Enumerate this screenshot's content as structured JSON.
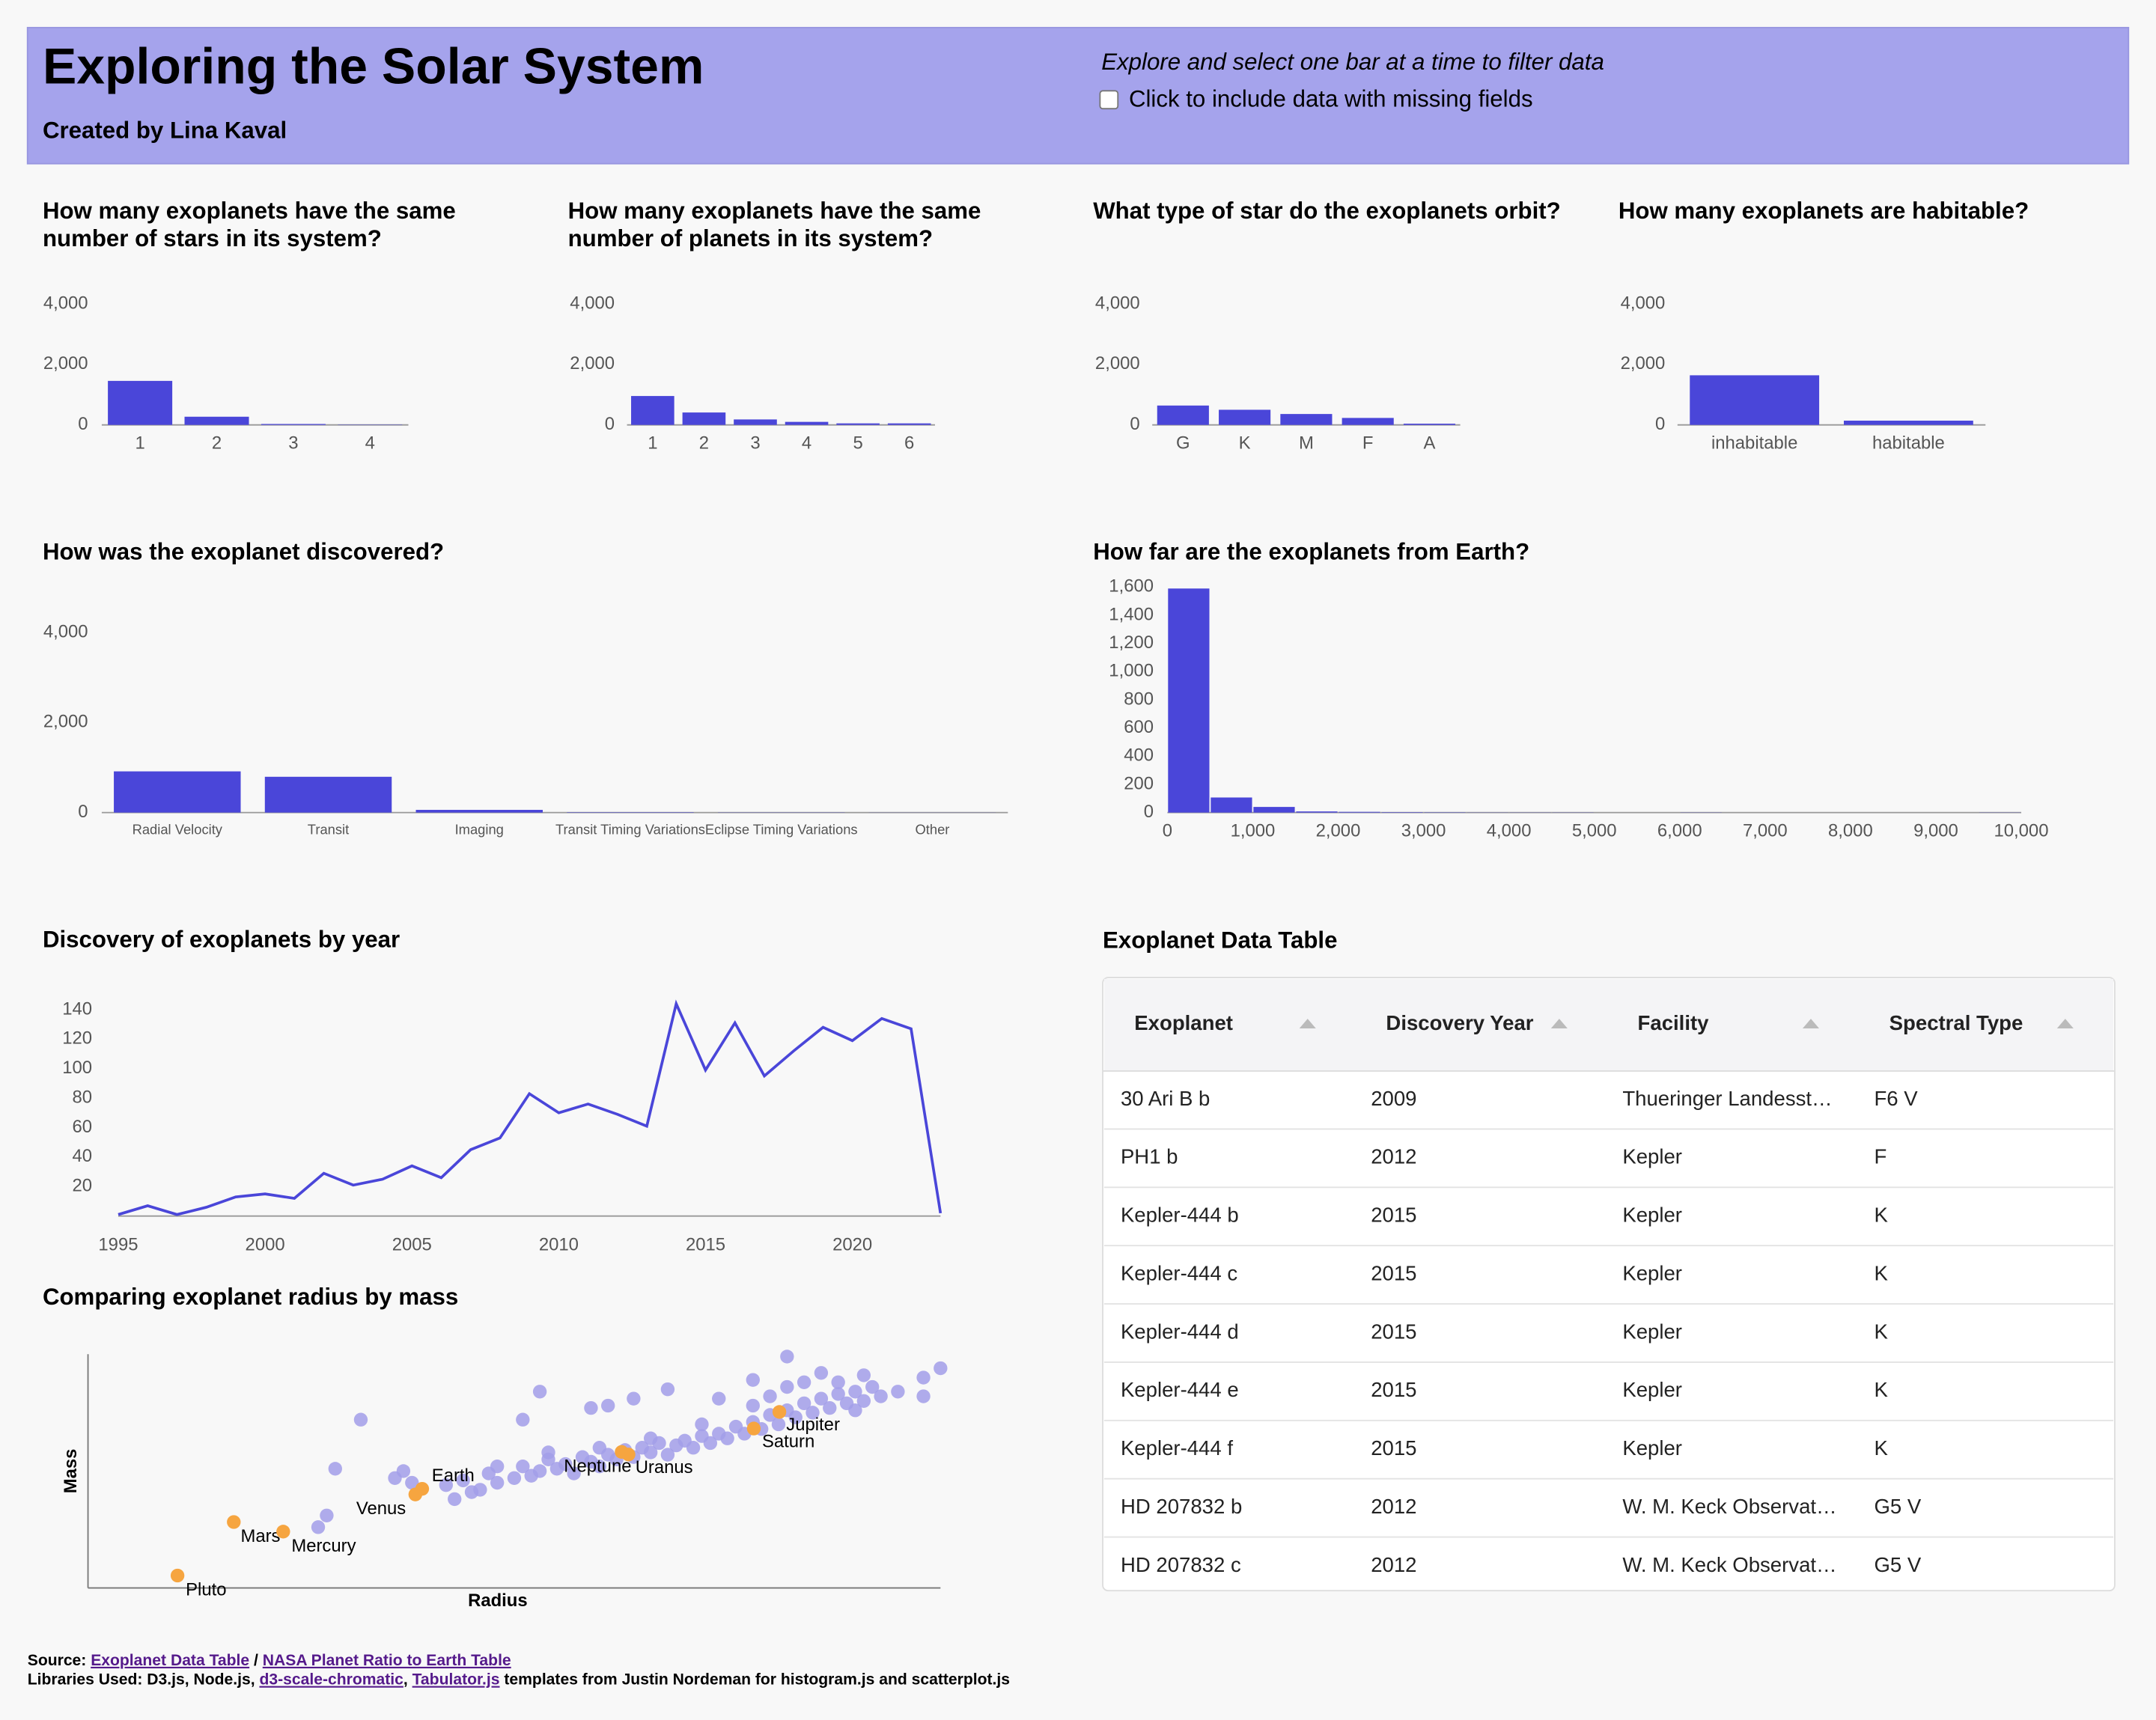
{
  "header": {
    "title": "Exploring the Solar System",
    "subtitle": "Created by Lina Kaval",
    "instruction": "Explore and select one bar at a time to filter data",
    "checkbox_label": "Click to include data with missing fields",
    "checked": false
  },
  "chart_data": [
    {
      "type": "bar",
      "title": "How many exoplanets have the same number of stars in its system?",
      "categories": [
        "1",
        "2",
        "3",
        "4"
      ],
      "values": [
        1455,
        270,
        30,
        10
      ],
      "color": "#4a46d9",
      "ylim": [
        0,
        4000
      ],
      "yticks": [
        0,
        {
          "value": 2000,
          "label": "2,000"
        },
        {
          "value": 4000,
          "label": "4,000"
        }
      ]
    },
    {
      "type": "bar",
      "title": "How many exoplanets have the same number of planets in its system?",
      "categories": [
        "1",
        "2",
        "3",
        "4",
        "5",
        "6"
      ],
      "values": [
        955,
        410,
        180,
        100,
        50,
        50
      ],
      "color": "#4a46d9",
      "ylim": [
        0,
        4000
      ],
      "yticks": [
        0,
        {
          "value": 2000,
          "label": "2,000"
        },
        {
          "value": 4000,
          "label": "4,000"
        }
      ]
    },
    {
      "type": "bar",
      "title": "What type of star do the exoplanets orbit?",
      "categories": [
        "G",
        "K",
        "M",
        "F",
        "A"
      ],
      "values": [
        640,
        500,
        360,
        230,
        40
      ],
      "color": "#4a46d9",
      "ylim": [
        0,
        4000
      ],
      "yticks": [
        0,
        {
          "value": 2000,
          "label": "2,000"
        },
        {
          "value": 4000,
          "label": "4,000"
        }
      ]
    },
    {
      "type": "bar",
      "title": "How many exoplanets are habitable?",
      "categories": [
        "inhabitable",
        "habitable"
      ],
      "values": [
        1640,
        140
      ],
      "color": "#4a46d9",
      "ylim": [
        0,
        4000
      ],
      "yticks": [
        0,
        {
          "value": 2000,
          "label": "2,000"
        },
        {
          "value": 4000,
          "label": "4,000"
        }
      ]
    },
    {
      "type": "bar",
      "title": "How was the exoplanet discovered?",
      "categories": [
        "Radial Velocity",
        "Transit",
        "Imaging",
        "Transit Timing Variations",
        "Eclipse Timing Variations",
        "Other"
      ],
      "values": [
        915,
        795,
        60,
        8,
        4,
        2
      ],
      "color": "#4a46d9",
      "ylim": [
        0,
        4000
      ],
      "yticks": [
        0,
        {
          "value": 2000,
          "label": "2,000"
        },
        {
          "value": 4000,
          "label": "4,000"
        }
      ]
    },
    {
      "type": "histogram",
      "title": "How far are the exoplanets from Earth?",
      "bins": [
        0,
        500,
        1000,
        1500,
        2000,
        2500,
        3000,
        3500,
        4000,
        4500,
        5000,
        5500,
        6000,
        6500,
        7000,
        7500,
        8000,
        8500,
        9000,
        9500,
        10000
      ],
      "values": [
        1590,
        107,
        40,
        8,
        5,
        3,
        2,
        1,
        1,
        1,
        0,
        0,
        1,
        0,
        0,
        0,
        0,
        0,
        0,
        1
      ],
      "color": "#4a46d9",
      "xlim": [
        0,
        10000
      ],
      "xticks": [
        0,
        {
          "value": 1000,
          "label": "1,000"
        },
        {
          "value": 2000,
          "label": "2,000"
        },
        {
          "value": 3000,
          "label": "3,000"
        },
        {
          "value": 4000,
          "label": "4,000"
        },
        {
          "value": 5000,
          "label": "5,000"
        },
        {
          "value": 6000,
          "label": "6,000"
        },
        {
          "value": 7000,
          "label": "7,000"
        },
        {
          "value": 8000,
          "label": "8,000"
        },
        {
          "value": 9000,
          "label": "9,000"
        },
        {
          "value": 10000,
          "label": "10,000"
        }
      ],
      "ylim": [
        0,
        1600
      ],
      "yticks": [
        0,
        200,
        400,
        600,
        800,
        {
          "value": 1000,
          "label": "1,000"
        },
        {
          "value": 1200,
          "label": "1,200"
        },
        {
          "value": 1400,
          "label": "1,400"
        },
        {
          "value": 1600,
          "label": "1,600"
        }
      ]
    },
    {
      "type": "line",
      "title": "Discovery of exoplanets by year",
      "x": [
        1995,
        1996,
        1997,
        1998,
        1999,
        2000,
        2001,
        2002,
        2003,
        2004,
        2005,
        2006,
        2007,
        2008,
        2009,
        2010,
        2011,
        2012,
        2013,
        2014,
        2015,
        2016,
        2017,
        2018,
        2019,
        2020,
        2021,
        2022,
        2023
      ],
      "values": [
        1,
        7,
        1,
        6,
        13,
        15,
        12,
        29,
        21,
        25,
        34,
        26,
        45,
        53,
        83,
        70,
        76,
        69,
        61,
        144,
        99,
        131,
        95,
        112,
        128,
        119,
        134,
        127,
        2
      ],
      "color": "#4a46d9",
      "xlim": [
        1995,
        2023
      ],
      "xticks": [
        1995,
        2000,
        2005,
        2010,
        2015,
        2020
      ],
      "ylim": [
        0,
        145
      ],
      "yticks": [
        20,
        40,
        60,
        80,
        100,
        120,
        140
      ]
    },
    {
      "type": "scatter",
      "title": "Comparing exoplanet radius by mass",
      "x_label": "Radius",
      "y_label": "Mass",
      "xlim": [
        0,
        100
      ],
      "ylim": [
        0,
        100
      ],
      "series": [
        {
          "color": "#a29ee9",
          "x": [
            32,
            29,
            27,
            28,
            37,
            53,
            51,
            59,
            61,
            64,
            68,
            74,
            78,
            82,
            91,
            98,
            100,
            98,
            95,
            42,
            44,
            45,
            47,
            48,
            50,
            51,
            52,
            53,
            54,
            55,
            56,
            57,
            58,
            59,
            60,
            61,
            62,
            63,
            64,
            65,
            66,
            67,
            68,
            69,
            70,
            71,
            72,
            73,
            74,
            75,
            76,
            77,
            78,
            79,
            80,
            81,
            82,
            83,
            84,
            85,
            86,
            87,
            88,
            89,
            90,
            91,
            92,
            93,
            84,
            86,
            82,
            80,
            88,
            90,
            78,
            72,
            66,
            60,
            54,
            48,
            46,
            43,
            38,
            36
          ],
          "values": [
            72,
            51,
            26,
            31,
            50,
            84,
            72,
            77,
            78,
            81,
            85,
            81,
            89,
            99,
            91,
            90,
            94,
            82,
            84,
            44,
            46,
            41,
            49,
            45,
            47,
            52,
            48,
            50,
            55,
            51,
            53,
            49,
            56,
            54,
            52,
            57,
            55,
            59,
            56,
            60,
            58,
            62,
            57,
            61,
            63,
            60,
            65,
            62,
            66,
            64,
            69,
            66,
            71,
            68,
            74,
            70,
            76,
            73,
            79,
            75,
            81,
            77,
            83,
            79,
            84,
            80,
            86,
            82,
            88,
            92,
            86,
            82,
            88,
            76,
            78,
            70,
            64,
            60,
            58,
            52,
            42,
            38,
            45,
            47
          ]
        },
        {
          "color": "#f6a540",
          "x": [
            10.5,
            17.1,
            22.9,
            38.4,
            39.2,
            62.6,
            63.4,
            78.1,
            81.1
          ],
          "values": [
            5.3,
            28.2,
            24.1,
            40,
            42.4,
            58.2,
            57.1,
            68.2,
            75.3
          ],
          "labels": [
            "Pluto",
            "Mars",
            "Mercury",
            "Venus",
            "Earth",
            "Neptune",
            "Uranus",
            "Saturn",
            "Jupiter"
          ]
        }
      ]
    }
  ],
  "table": {
    "title": "Exoplanet Data Table",
    "columns": [
      "Exoplanet",
      "Discovery Year",
      "Facility",
      "Spectral Type"
    ],
    "rows": [
      [
        "30 Ari B b",
        "2009",
        "Thueringer Landesst…",
        "F6 V"
      ],
      [
        "PH1 b",
        "2012",
        "Kepler",
        "F"
      ],
      [
        "Kepler-444 b",
        "2015",
        "Kepler",
        "K"
      ],
      [
        "Kepler-444 c",
        "2015",
        "Kepler",
        "K"
      ],
      [
        "Kepler-444 d",
        "2015",
        "Kepler",
        "K"
      ],
      [
        "Kepler-444 e",
        "2015",
        "Kepler",
        "K"
      ],
      [
        "Kepler-444 f",
        "2015",
        "Kepler",
        "K"
      ],
      [
        "HD 207832 b",
        "2012",
        "W. M. Keck Observat…",
        "G5 V"
      ],
      [
        "HD 207832 c",
        "2012",
        "W. M. Keck Observat…",
        "G5 V"
      ]
    ]
  },
  "footer": {
    "lines": [
      [
        {
          "text": "Source: "
        },
        {
          "text": "Exoplanet Data Table",
          "link": true
        },
        {
          "text": " / "
        },
        {
          "text": "NASA Planet Ratio to Earth Table",
          "link": true
        }
      ],
      [
        {
          "text": "Libraries Used: D3.js, Node.js, "
        },
        {
          "text": "d3-scale-chromatic",
          "link": true
        },
        {
          "text": ", "
        },
        {
          "text": "Tabulator.js",
          "link": true
        },
        {
          "text": " templates from Justin Nordeman for histogram.js and scatterplot.js"
        }
      ]
    ]
  }
}
